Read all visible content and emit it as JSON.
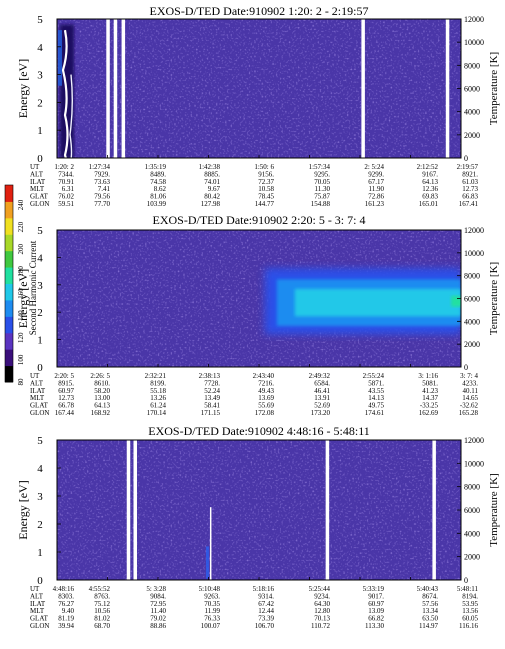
{
  "colors": {
    "background_field": "#4a36a8",
    "speckle": "#5a3fc4",
    "gap": "#ffffff",
    "colorscale": [
      "#000000",
      "#3a0f7a",
      "#5a34c0",
      "#2a50e8",
      "#1e8cf0",
      "#20c8e8",
      "#20e0a0",
      "#40c840",
      "#a8d828",
      "#f0e020",
      "#f0a020",
      "#e02010"
    ]
  },
  "colorbar": {
    "label": "Second Harmonic Current",
    "ticks": [
      "80",
      "100",
      "120",
      "140",
      "160",
      "180",
      "200",
      "220",
      "240"
    ]
  },
  "chart_data": [
    {
      "type": "heatmap",
      "title": "EXOS-D/TED   Date:910902   1:20: 2 - 2:19:57",
      "ylabel": "Energy [eV]",
      "ylabel_right": "Temperature [K]",
      "ylim": [
        0,
        5
      ],
      "yticks": [
        "0",
        "1",
        "2",
        "3",
        "4",
        "5"
      ],
      "ylim_right": [
        0,
        12000
      ],
      "yticks_right": [
        "0",
        "2000",
        "4000",
        "6000",
        "8000",
        "10000",
        "12000"
      ],
      "row_labels": [
        "UT",
        "ALT",
        "ILAT",
        "MLT",
        "GLAT",
        "GLON"
      ],
      "columns": [
        [
          "1:20: 2",
          "7344.",
          "70.91",
          "6.31",
          "76.02",
          "59.51"
        ],
        [
          "1:27:34",
          "7929.",
          "73.63",
          "7.41",
          "79.56",
          "77.70"
        ],
        [
          "1:35:19",
          "8489.",
          "74.58",
          "8.62",
          "81.06",
          "103.99"
        ],
        [
          "1:42:38",
          "8885.",
          "74.01",
          "9.67",
          "80.42",
          "127.98"
        ],
        [
          "1:50: 6",
          "9156.",
          "72.37",
          "10.58",
          "78.45",
          "144.77"
        ],
        [
          "1:57:34",
          "9295.",
          "70.05",
          "11.30",
          "75.87",
          "154.88"
        ],
        [
          "2: 5:24",
          "9299.",
          "67.17",
          "11.90",
          "72.86",
          "161.23"
        ],
        [
          "2:12:52",
          "9167.",
          "64.13",
          "12.36",
          "69.83",
          "165.01"
        ],
        [
          "2:19:57",
          "8921.",
          "61.03",
          "12.73",
          "66.83",
          "167.41"
        ]
      ],
      "data_gaps_ut": [
        "1:27:34",
        "1:28:40",
        "1:29:50",
        "2: 5:24",
        "2:17:55"
      ],
      "features": [
        "low-energy enhancement (0-4.8 eV) near 1:20-1:23 UT"
      ]
    },
    {
      "type": "heatmap",
      "title": "EXOS-D/TED   Date:910902   2:20: 5 - 3: 7: 4",
      "ylabel": "Energy [eV]",
      "ylabel_right": "Temperature [K]",
      "ylim": [
        0,
        5
      ],
      "yticks": [
        "0",
        "1",
        "2",
        "3",
        "4",
        "5"
      ],
      "ylim_right": [
        0,
        12000
      ],
      "yticks_right": [
        "0",
        "2000",
        "4000",
        "6000",
        "8000",
        "10000",
        "12000"
      ],
      "row_labels": [
        "UT",
        "ALT",
        "ILAT",
        "MLT",
        "GLAT",
        "GLON"
      ],
      "columns": [
        [
          "2:20: 5",
          "8915.",
          "60.97",
          "12.73",
          "66.78",
          "167.44"
        ],
        [
          "2:26: 5",
          "8610.",
          "58.20",
          "13.00",
          "64.13",
          "168.92"
        ],
        [
          "2:32:21",
          "8199.",
          "55.18",
          "13.26",
          "61.24",
          "170.14"
        ],
        [
          "2:38:13",
          "7728.",
          "52.24",
          "13.49",
          "58.41",
          "171.15"
        ],
        [
          "2:43:40",
          "7216.",
          "49.43",
          "13.69",
          "55.69",
          "172.08"
        ],
        [
          "2:49:32",
          "6584.",
          "46.41",
          "13.91",
          "52.69",
          "173.20"
        ],
        [
          "2:55:24",
          "5871.",
          "43.55",
          "14.13",
          "49.75",
          "174.61"
        ],
        [
          "3: 1:16",
          "5081.",
          "41.23",
          "14.37",
          "-33.25",
          "162.69"
        ],
        [
          "3: 7: 4",
          "4233.",
          "40.11",
          "14.65",
          "-32.62",
          "165.28"
        ]
      ],
      "features": [
        "broad enhancement 1.2-3.5 eV from about 2:45 UT onward, peak near 2.4 eV"
      ]
    },
    {
      "type": "heatmap",
      "title": "EXOS-D/TED   Date:910902   4:48:16 - 5:48:11",
      "ylabel": "Energy [eV]",
      "ylabel_right": "Temperature [K]",
      "ylim": [
        0,
        5
      ],
      "yticks": [
        "0",
        "1",
        "2",
        "3",
        "4",
        "5"
      ],
      "ylim_right": [
        0,
        12000
      ],
      "yticks_right": [
        "0",
        "2000",
        "4000",
        "6000",
        "8000",
        "10000",
        "12000"
      ],
      "row_labels": [
        "UT",
        "ALT",
        "ILAT",
        "MLT",
        "GLAT",
        "GLON"
      ],
      "columns": [
        [
          "4:48:16",
          "8303.",
          "76.27",
          "9.40",
          "81.19",
          "39.94"
        ],
        [
          "4:55:52",
          "8763.",
          "75.12",
          "10.56",
          "81.02",
          "68.70"
        ],
        [
          "5: 3:28",
          "9084.",
          "72.95",
          "11.40",
          "79.02",
          "88.86"
        ],
        [
          "5:10:48",
          "9263.",
          "70.35",
          "11.99",
          "76.33",
          "100.07"
        ],
        [
          "5:18:16",
          "9314.",
          "67.42",
          "12.44",
          "73.39",
          "106.70"
        ],
        [
          "5:25:44",
          "9234.",
          "64.30",
          "12.80",
          "70.13",
          "110.72"
        ],
        [
          "5:33:19",
          "9017.",
          "60.97",
          "13.09",
          "66.82",
          "113.30"
        ],
        [
          "5:40:43",
          "8674.",
          "57.56",
          "13.34",
          "63.50",
          "114.97"
        ],
        [
          "5:48:11",
          "8194.",
          "53.95",
          "13.56",
          "60.05",
          "116.16"
        ]
      ],
      "data_gaps_ut": [
        "4:58:50",
        "4:59:50",
        "5:28:20",
        "5:44:10"
      ],
      "features": [
        "narrow vertical band near 5:10 UT"
      ]
    }
  ]
}
